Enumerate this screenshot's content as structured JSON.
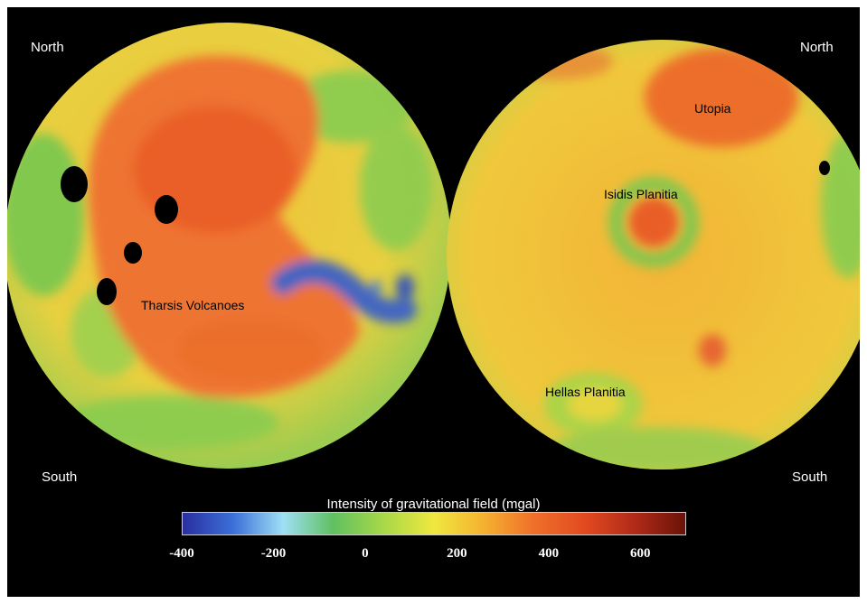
{
  "labels": {
    "north_left": "North",
    "north_right": "North",
    "south_left": "South",
    "south_right": "South",
    "tharsis": "Tharsis Volcanoes",
    "isidis": "Isidis Planitia",
    "utopia": "Utopia",
    "hellas": "Hellas Planitia"
  },
  "colorbar": {
    "title": "Intensity of gravitational field (mgal)",
    "min": -400,
    "max": 700,
    "ticks": [
      "-400",
      "-200",
      "0",
      "200",
      "400",
      "600"
    ],
    "stops": [
      "#2a2f9e",
      "#3b6fd8",
      "#9fe0f5",
      "#60c060",
      "#a8d848",
      "#f0e840",
      "#f5b030",
      "#ef6f2a",
      "#e24a20",
      "#b02a18",
      "#6a1208"
    ]
  },
  "colors": {
    "background": "#000000",
    "low": "#2a3fb0",
    "mid": "#f0d838",
    "high": "#e85a25",
    "very_high": "#000000"
  }
}
